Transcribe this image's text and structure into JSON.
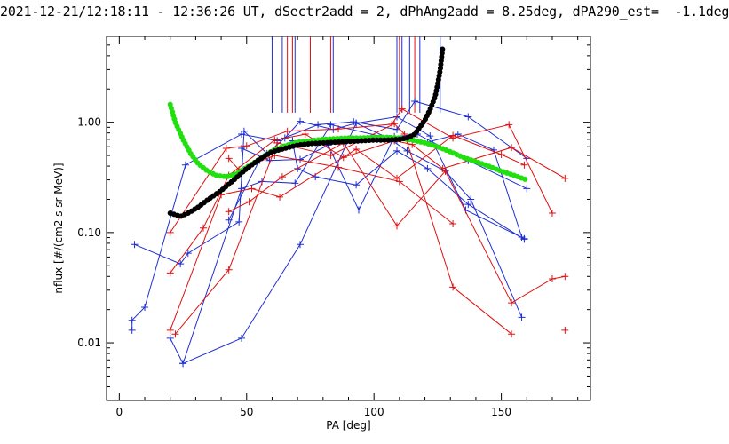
{
  "chart_data": {
    "type": "line",
    "title": "2021-12-21/12:18:11 - 12:36:26 UT, dSectr2add = 2, dPhAng2add = 8.25deg, dPA290_est=  -1.1deg",
    "xlabel": "PA [deg]",
    "ylabel": "nflux [#/(cm2 s sr MeV)]",
    "xlim": [
      -5,
      185
    ],
    "ylim": [
      0.003,
      6.0
    ],
    "yscale": "log",
    "x_ticks": [
      0,
      50,
      100,
      150
    ],
    "x_tick_labels": [
      "0",
      "50",
      "100",
      "150"
    ],
    "y_ticks": [
      0.01,
      0.1,
      1.0
    ],
    "y_tick_labels": [
      "0.01",
      "0.10",
      "1.00"
    ],
    "grid": false,
    "colors": {
      "blue": "#1f2fd0",
      "red": "#dd1111",
      "green": "#22e010",
      "black": "#000000"
    },
    "series": [
      {
        "color": "blue",
        "marker": "+",
        "points": [
          [
            6,
            0.078
          ],
          [
            24,
            0.052
          ],
          [
            27,
            0.065
          ],
          [
            47,
            0.125
          ],
          [
            49,
            0.83
          ],
          [
            58,
            0.52
          ],
          [
            65,
            0.72
          ],
          [
            71,
            1.02
          ],
          [
            84,
            0.86
          ],
          [
            93,
            0.98
          ],
          [
            106,
            0.71
          ],
          [
            113,
            0.55
          ],
          [
            128,
            0.36
          ],
          [
            138,
            0.2
          ],
          [
            158,
            0.017
          ]
        ]
      },
      {
        "color": "blue",
        "marker": "+",
        "points": [
          [
            5,
            0.013
          ],
          [
            5,
            0.016
          ],
          [
            10,
            0.021
          ],
          [
            26,
            0.41
          ],
          [
            48,
            0.78
          ],
          [
            62,
            0.68
          ],
          [
            78,
            0.95
          ],
          [
            92,
            1.01
          ],
          [
            109,
            0.86
          ],
          [
            116,
            1.55
          ],
          [
            137,
            1.12
          ],
          [
            160,
            0.47
          ]
        ]
      },
      {
        "color": "blue",
        "marker": "+",
        "points": [
          [
            20,
            0.011
          ],
          [
            25,
            0.0065
          ],
          [
            48,
            0.011
          ],
          [
            71,
            0.078
          ],
          [
            93,
            0.98
          ],
          [
            109,
            1.12
          ],
          [
            122,
            0.75
          ],
          [
            136,
            0.16
          ],
          [
            159,
            0.088
          ]
        ]
      },
      {
        "color": "blue",
        "marker": "+",
        "points": [
          [
            25,
            0.0065
          ],
          [
            48,
            0.25
          ],
          [
            56,
            0.29
          ],
          [
            69,
            0.28
          ],
          [
            83,
            0.95
          ],
          [
            109,
            0.69
          ],
          [
            121,
            0.66
          ],
          [
            133,
            0.78
          ],
          [
            147,
            0.56
          ],
          [
            158,
            0.091
          ]
        ]
      },
      {
        "color": "blue",
        "marker": "+",
        "points": [
          [
            43,
            0.13
          ],
          [
            55,
            0.45
          ],
          [
            68,
            0.68
          ],
          [
            70,
            0.38
          ],
          [
            77,
            0.32
          ],
          [
            93,
            0.27
          ],
          [
            109,
            0.55
          ],
          [
            121,
            0.38
          ],
          [
            137,
            0.18
          ],
          [
            159,
            0.087
          ]
        ]
      },
      {
        "color": "blue",
        "marker": "+",
        "points": [
          [
            48,
            0.58
          ],
          [
            59,
            0.45
          ],
          [
            71,
            0.46
          ],
          [
            82,
            0.62
          ],
          [
            94,
            0.16
          ],
          [
            108,
            0.74
          ],
          [
            117,
            0.78
          ],
          [
            137,
            0.45
          ],
          [
            160,
            0.25
          ]
        ]
      },
      {
        "color": "red",
        "marker": "+",
        "points": [
          [
            20,
            0.1
          ],
          [
            42,
            0.58
          ],
          [
            50,
            0.61
          ],
          [
            66,
            0.83
          ],
          [
            86,
            0.87
          ],
          [
            107,
            0.96
          ],
          [
            111,
            1.32
          ],
          [
            131,
            0.72
          ],
          [
            153,
            0.95
          ],
          [
            170,
            0.15
          ]
        ]
      },
      {
        "color": "red",
        "marker": "+",
        "points": [
          [
            20,
            0.043
          ],
          [
            33,
            0.11
          ],
          [
            43,
            0.33
          ],
          [
            61,
            0.69
          ],
          [
            73,
            0.78
          ],
          [
            88,
            0.48
          ],
          [
            108,
            0.68
          ],
          [
            115,
            0.63
          ],
          [
            127,
            0.38
          ],
          [
            154,
            0.59
          ],
          [
            175,
            0.31
          ]
        ]
      },
      {
        "color": "red",
        "marker": "+",
        "points": [
          [
            22,
            0.012
          ],
          [
            43,
            0.046
          ],
          [
            62,
            0.65
          ],
          [
            83,
            0.5
          ],
          [
            108,
            0.97
          ],
          [
            112,
            0.78
          ],
          [
            131,
            0.032
          ],
          [
            154,
            0.012
          ]
        ]
      },
      {
        "color": "red",
        "marker": "+",
        "points": [
          [
            20,
            0.013
          ],
          [
            40,
            0.22
          ],
          [
            52,
            0.25
          ],
          [
            63,
            0.21
          ],
          [
            93,
            0.57
          ],
          [
            109,
            0.31
          ],
          [
            131,
            0.76
          ],
          [
            150,
            0.51
          ],
          [
            159,
            0.41
          ]
        ]
      },
      {
        "color": "red",
        "marker": "+",
        "points": [
          [
            43,
            0.155
          ],
          [
            51,
            0.19
          ],
          [
            64,
            0.32
          ],
          [
            88,
            0.65
          ],
          [
            109,
            0.115
          ],
          [
            128,
            0.36
          ],
          [
            154,
            0.023
          ],
          [
            170,
            0.038
          ],
          [
            175,
            0.04
          ]
        ]
      },
      {
        "color": "red",
        "marker": "+",
        "points": [
          [
            43,
            0.47
          ],
          [
            47,
            0.37
          ],
          [
            61,
            0.5
          ],
          [
            86,
            0.39
          ],
          [
            110,
            0.29
          ],
          [
            131,
            0.12
          ]
        ]
      },
      {
        "color": "red",
        "marker": "+",
        "points": [
          [
            175,
            0.013
          ]
        ]
      }
    ],
    "green_curve": [
      [
        20,
        1.45
      ],
      [
        22,
        1.0
      ],
      [
        25,
        0.7
      ],
      [
        28,
        0.52
      ],
      [
        31,
        0.42
      ],
      [
        34,
        0.37
      ],
      [
        38,
        0.33
      ],
      [
        42,
        0.32
      ],
      [
        46,
        0.34
      ],
      [
        50,
        0.39
      ],
      [
        55,
        0.46
      ],
      [
        60,
        0.55
      ],
      [
        65,
        0.61
      ],
      [
        70,
        0.66
      ],
      [
        75,
        0.68
      ],
      [
        80,
        0.7
      ],
      [
        85,
        0.71
      ],
      [
        90,
        0.72
      ],
      [
        95,
        0.72
      ],
      [
        100,
        0.73
      ],
      [
        105,
        0.73
      ],
      [
        110,
        0.72
      ],
      [
        115,
        0.69
      ],
      [
        120,
        0.65
      ],
      [
        125,
        0.6
      ],
      [
        130,
        0.54
      ],
      [
        135,
        0.48
      ],
      [
        140,
        0.44
      ],
      [
        145,
        0.4
      ],
      [
        150,
        0.36
      ],
      [
        155,
        0.33
      ],
      [
        160,
        0.3
      ]
    ],
    "black_curve": [
      [
        20,
        0.15
      ],
      [
        22,
        0.145
      ],
      [
        24,
        0.14
      ],
      [
        27,
        0.15
      ],
      [
        31,
        0.17
      ],
      [
        35,
        0.2
      ],
      [
        40,
        0.24
      ],
      [
        45,
        0.3
      ],
      [
        50,
        0.38
      ],
      [
        55,
        0.46
      ],
      [
        60,
        0.54
      ],
      [
        65,
        0.58
      ],
      [
        70,
        0.62
      ],
      [
        75,
        0.64
      ],
      [
        80,
        0.65
      ],
      [
        85,
        0.66
      ],
      [
        90,
        0.67
      ],
      [
        95,
        0.68
      ],
      [
        100,
        0.69
      ],
      [
        105,
        0.69
      ],
      [
        110,
        0.7
      ],
      [
        113,
        0.72
      ],
      [
        116,
        0.78
      ],
      [
        118,
        0.9
      ],
      [
        120,
        1.05
      ],
      [
        122,
        1.3
      ],
      [
        124,
        1.7
      ],
      [
        125,
        2.2
      ],
      [
        126,
        3.0
      ],
      [
        126.5,
        3.8
      ],
      [
        127,
        4.8
      ]
    ],
    "vertical_markers": [
      {
        "color": "blue",
        "x": 60
      },
      {
        "color": "blue",
        "x": 64
      },
      {
        "color": "red",
        "x": 66
      },
      {
        "color": "red",
        "x": 68
      },
      {
        "color": "blue",
        "x": 69
      },
      {
        "color": "red",
        "x": 75
      },
      {
        "color": "red",
        "x": 83
      },
      {
        "color": "blue",
        "x": 84
      },
      {
        "color": "blue",
        "x": 109
      },
      {
        "color": "red",
        "x": 110
      },
      {
        "color": "blue",
        "x": 111
      },
      {
        "color": "blue",
        "x": 114
      },
      {
        "color": "red",
        "x": 116
      },
      {
        "color": "blue",
        "x": 118
      },
      {
        "color": "blue",
        "x": 126
      }
    ]
  }
}
